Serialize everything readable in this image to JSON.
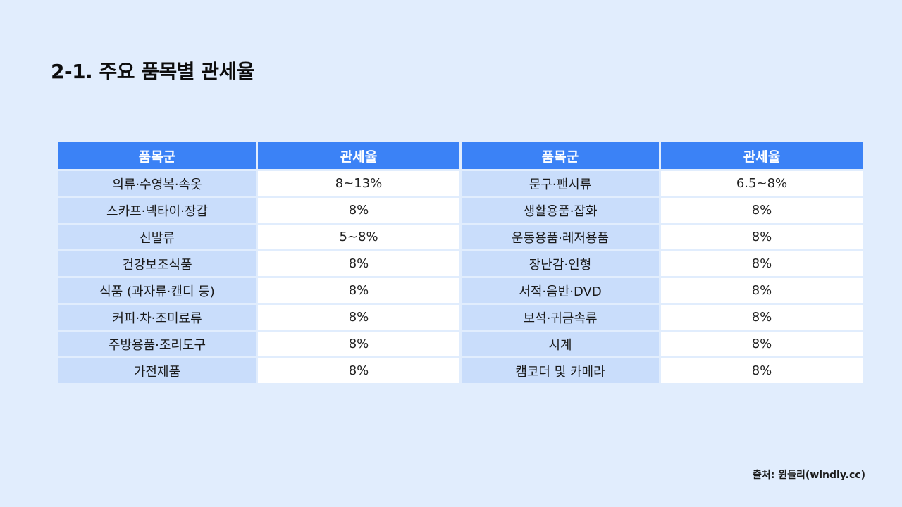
{
  "title": "2-1. 주요 품목별 관세율",
  "table": {
    "headers": [
      "품목군",
      "관세율"
    ],
    "left_rows": [
      {
        "category": "의류·수영복·속옷",
        "rate": "8~13%"
      },
      {
        "category": "스카프·넥타이·장갑",
        "rate": "8%"
      },
      {
        "category": "신발류",
        "rate": "5~8%"
      },
      {
        "category": "건강보조식품",
        "rate": "8%"
      },
      {
        "category": "식품 (과자류·캔디 등)",
        "rate": "8%"
      },
      {
        "category": "커피·차·조미료류",
        "rate": "8%"
      },
      {
        "category": "주방용품·조리도구",
        "rate": "8%"
      },
      {
        "category": "가전제품",
        "rate": "8%"
      }
    ],
    "right_rows": [
      {
        "category": "문구·팬시류",
        "rate": "6.5~8%"
      },
      {
        "category": "생활용품·잡화",
        "rate": "8%"
      },
      {
        "category": "운동용품·레저용품",
        "rate": "8%"
      },
      {
        "category": "장난감·인형",
        "rate": "8%"
      },
      {
        "category": "서적·음반·DVD",
        "rate": "8%"
      },
      {
        "category": "보석·귀금속류",
        "rate": "8%"
      },
      {
        "category": "시계",
        "rate": "8%"
      },
      {
        "category": "캠코더 및 카메라",
        "rate": "8%"
      }
    ]
  },
  "source": "출처: 윈들리(windly.cc)",
  "colors": {
    "background": "#e1edfd",
    "header": "#3b82f6",
    "category_cell": "#c9ddfb",
    "rate_cell": "#ffffff"
  }
}
